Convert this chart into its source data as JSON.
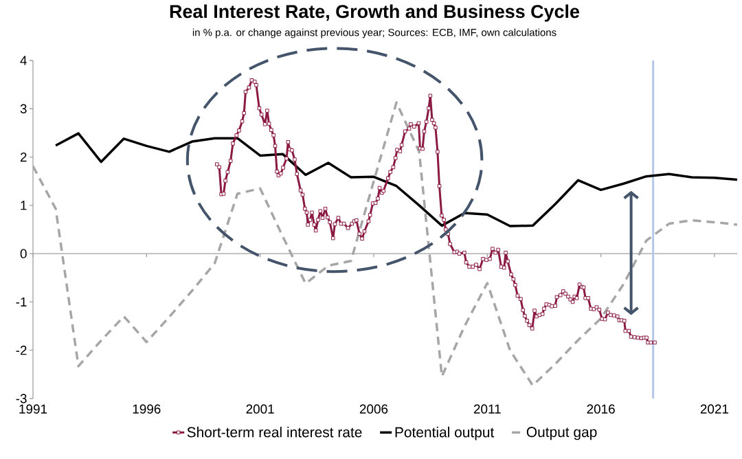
{
  "chart_data": {
    "type": "line",
    "title": "Real Interest Rate, Growth and Business Cycle",
    "subtitle": "in % p.a. or change against previous year; Sources: ECB, IMF, own calculations",
    "xlim": [
      1991,
      2022
    ],
    "xticks": [
      1991,
      1996,
      2001,
      2006,
      2011,
      2016,
      2021
    ],
    "ylim": [
      -3,
      4
    ],
    "yticks": [
      -3,
      -2,
      -1,
      0,
      1,
      2,
      3,
      4
    ],
    "legend": "bottom",
    "ref_lines": [
      {
        "axis": "x",
        "value": 2018.3,
        "color": "#b4c7e7"
      }
    ],
    "series": [
      {
        "name": "Short-term real interest rate",
        "color": "#8b1a42",
        "marker": "square",
        "line_style": "solid",
        "x": [
          1999.1,
          1999.2,
          1999.29,
          1999.39,
          1999.47,
          1999.57,
          1999.7,
          1999.8,
          1999.96,
          2000.07,
          2000.21,
          2000.29,
          2000.36,
          2000.51,
          2000.63,
          2000.76,
          2000.83,
          2000.96,
          2001.06,
          2001.21,
          2001.31,
          2001.39,
          2001.49,
          2001.59,
          2001.66,
          2001.74,
          2001.81,
          2001.91,
          2002.01,
          2002.16,
          2002.23,
          2002.3,
          2002.4,
          2002.52,
          2002.62,
          2002.78,
          2002.87,
          2002.97,
          2003.05,
          2003.1,
          2003.2,
          2003.28,
          2003.38,
          2003.45,
          2003.55,
          2003.65,
          2003.75,
          2003.87,
          2003.97,
          2004.07,
          2004.21,
          2004.29,
          2004.44,
          2004.56,
          2004.69,
          2004.87,
          2005.04,
          2005.14,
          2005.24,
          2005.37,
          2005.49,
          2005.59,
          2005.77,
          2005.84,
          2005.96,
          2006.08,
          2006.18,
          2006.26,
          2006.36,
          2006.43,
          2006.63,
          2006.73,
          2006.86,
          2006.96,
          2007.03,
          2007.16,
          2007.23,
          2007.38,
          2007.56,
          2007.63,
          2007.78,
          2007.98,
          2008.04,
          2008.15,
          2008.22,
          2008.32,
          2008.42,
          2008.49,
          2008.57,
          2008.65,
          2008.72,
          2008.81,
          2008.89,
          2008.99,
          2009.09,
          2009.17,
          2009.27,
          2009.36,
          2009.55,
          2009.67,
          2009.77,
          2009.99,
          2010.07,
          2010.21,
          2010.36,
          2010.51,
          2010.66,
          2010.81,
          2010.96,
          2011.11,
          2011.23,
          2011.36,
          2011.48,
          2011.61,
          2011.74,
          2011.81,
          2011.9,
          2012.05,
          2012.15,
          2012.23,
          2012.33,
          2012.47,
          2012.57,
          2012.65,
          2012.75,
          2012.85,
          2012.98,
          2013.08,
          2013.17,
          2013.3,
          2013.43,
          2013.5,
          2013.6,
          2013.73,
          2013.84,
          2013.99,
          2014.06,
          2014.22,
          2014.34,
          2014.44,
          2014.56,
          2014.66,
          2014.76,
          2014.84,
          2014.94,
          2015.06,
          2015.16,
          2015.24,
          2015.32,
          2015.44,
          2015.56,
          2015.69,
          2015.81,
          2015.93,
          2016.05,
          2016.18,
          2016.31,
          2016.43,
          2016.58,
          2016.73,
          2016.81,
          2016.91,
          2017.03,
          2017.08,
          2017.23,
          2017.33,
          2017.48,
          2017.63,
          2017.78,
          2017.9,
          2018.01,
          2018.07,
          2018.2,
          2018.37
        ],
        "values": [
          1.85,
          1.79,
          1.23,
          1.24,
          1.51,
          1.69,
          1.92,
          2.28,
          2.45,
          2.55,
          2.74,
          2.91,
          3.35,
          3.44,
          3.59,
          3.56,
          3.49,
          3.01,
          2.88,
          2.68,
          2.96,
          2.69,
          2.56,
          2.45,
          2.23,
          1.7,
          1.62,
          1.66,
          1.78,
          1.97,
          2.31,
          2.16,
          2.14,
          1.95,
          1.65,
          1.31,
          1.22,
          0.93,
          0.85,
          0.6,
          0.7,
          0.85,
          0.6,
          0.48,
          0.7,
          0.88,
          0.74,
          0.93,
          0.75,
          0.65,
          0.32,
          0.61,
          0.74,
          0.62,
          0.62,
          0.53,
          0.62,
          0.67,
          0.69,
          0.41,
          0.31,
          0.46,
          0.67,
          0.8,
          1.04,
          1.05,
          1.14,
          1.36,
          1.26,
          1.3,
          1.56,
          1.69,
          1.79,
          1.98,
          2.15,
          2.12,
          2.25,
          2.53,
          2.59,
          2.68,
          2.63,
          2.7,
          2.18,
          2.17,
          2.53,
          2.73,
          3.01,
          3.27,
          2.77,
          2.7,
          2.61,
          2.11,
          1.4,
          0.79,
          0.7,
          0.5,
          0.41,
          0.2,
          0.03,
          0.04,
          0.0,
          0.02,
          -0.18,
          -0.27,
          -0.27,
          -0.23,
          -0.32,
          -0.11,
          -0.13,
          -0.11,
          0.1,
          0.02,
          0.08,
          -0.27,
          -0.29,
          0.02,
          -0.16,
          -0.43,
          -0.53,
          -0.65,
          -0.87,
          -0.94,
          -1.17,
          -1.29,
          -1.39,
          -1.48,
          -1.55,
          -1.18,
          -1.3,
          -1.27,
          -1.25,
          -1.14,
          -1.05,
          -1.06,
          -1.09,
          -1.08,
          -0.9,
          -0.86,
          -0.78,
          -0.83,
          -0.89,
          -0.95,
          -1.0,
          -0.89,
          -0.92,
          -0.64,
          -0.69,
          -0.7,
          -0.92,
          -0.92,
          -1.14,
          -1.15,
          -1.11,
          -1.16,
          -1.35,
          -1.36,
          -1.22,
          -1.27,
          -1.28,
          -1.3,
          -1.38,
          -1.38,
          -1.39,
          -1.6,
          -1.6,
          -1.72,
          -1.73,
          -1.74,
          -1.75,
          -1.74,
          -1.74,
          -1.84,
          -1.84,
          -1.84
        ]
      },
      {
        "name": "Potential output",
        "color": "#000000",
        "marker": "none",
        "line_style": "solid",
        "x": [
          1992,
          1993,
          1994,
          1995,
          1996,
          1997,
          1998,
          1999,
          2000,
          2001,
          2002,
          2003,
          2004,
          2005,
          2006,
          2007,
          2008,
          2009,
          2010,
          2011,
          2012,
          2013,
          2014,
          2015,
          2016,
          2017,
          2018,
          2019,
          2020,
          2021,
          2022
        ],
        "values": [
          2.24,
          2.49,
          1.9,
          2.38,
          2.23,
          2.11,
          2.32,
          2.39,
          2.39,
          2.03,
          2.06,
          1.63,
          1.88,
          1.58,
          1.59,
          1.4,
          1.0,
          0.58,
          0.84,
          0.81,
          0.57,
          0.58,
          1.03,
          1.52,
          1.32,
          1.45,
          1.6,
          1.65,
          1.58,
          1.57,
          1.53
        ]
      },
      {
        "name": "Output gap",
        "color": "#a6a6a6",
        "marker": "none",
        "line_style": "dashed",
        "x": [
          1991,
          1992,
          1993,
          1994,
          1995,
          1996,
          1997,
          1998,
          1999,
          2000,
          2001,
          2002,
          2003,
          2004,
          2005,
          2006,
          2007,
          2008,
          2009,
          2010,
          2011,
          2012,
          2013,
          2014,
          2015,
          2016,
          2017,
          2018,
          2019,
          2020,
          2021,
          2022
        ],
        "values": [
          1.81,
          0.93,
          -2.33,
          -1.8,
          -1.3,
          -1.83,
          -1.31,
          -0.77,
          -0.2,
          1.24,
          1.35,
          0.35,
          -0.62,
          -0.25,
          -0.15,
          1.5,
          3.13,
          2.11,
          -2.54,
          -1.5,
          -0.61,
          -2.0,
          -2.73,
          -2.28,
          -1.79,
          -1.34,
          -0.63,
          0.27,
          0.62,
          0.69,
          0.65,
          0.6
        ]
      }
    ]
  }
}
